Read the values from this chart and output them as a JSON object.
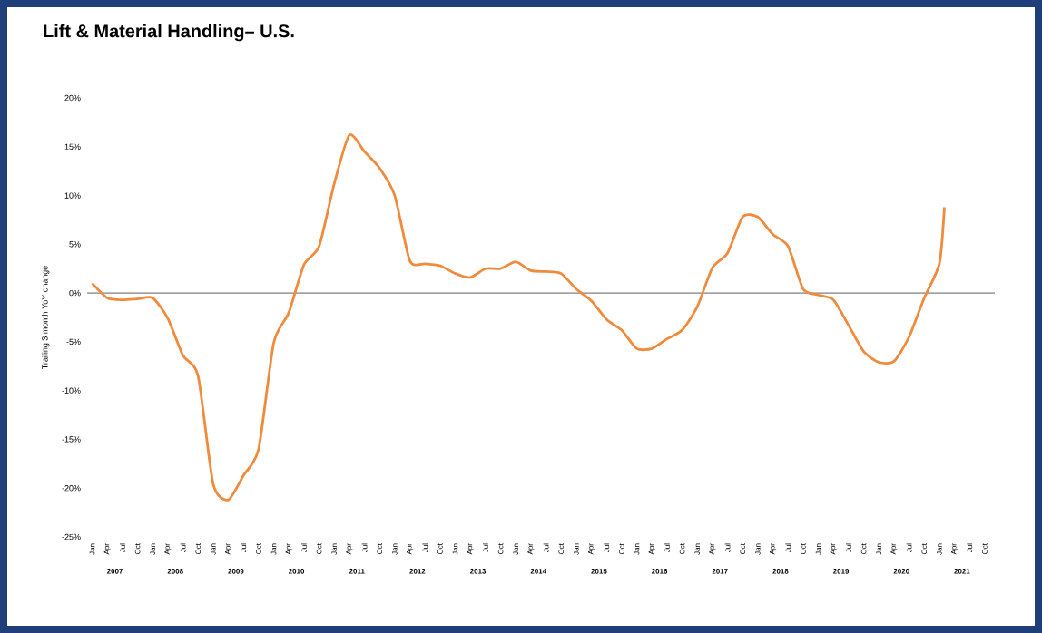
{
  "chart_data": {
    "type": "line",
    "title": "Lift & Material Handling– U.S.",
    "ylabel": "Trailing 3 month YoY change",
    "series": [
      {
        "color": "#f08a3c",
        "x": [
          "2007-01",
          "2007-04",
          "2007-07",
          "2007-10",
          "2008-01",
          "2008-04",
          "2008-07",
          "2008-10",
          "2009-01",
          "2009-04",
          "2009-07",
          "2009-10",
          "2010-01",
          "2010-04",
          "2010-07",
          "2010-10",
          "2011-01",
          "2011-04",
          "2011-07",
          "2011-10",
          "2012-01",
          "2012-04",
          "2012-07",
          "2012-10",
          "2013-01",
          "2013-04",
          "2013-07",
          "2013-10",
          "2014-01",
          "2014-04",
          "2014-07",
          "2014-10",
          "2015-01",
          "2015-04",
          "2015-07",
          "2015-10",
          "2016-01",
          "2016-04",
          "2016-07",
          "2016-10",
          "2017-01",
          "2017-04",
          "2017-07",
          "2017-10",
          "2018-01",
          "2018-04",
          "2018-07",
          "2018-10",
          "2019-01",
          "2019-04",
          "2019-07",
          "2019-10",
          "2020-01",
          "2020-04",
          "2020-07",
          "2020-10",
          "2021-01",
          "2021-02"
        ],
        "values": [
          1.0,
          -0.5,
          -0.7,
          -0.6,
          -0.5,
          -2.6,
          -6.4,
          -8.5,
          -19.6,
          -21.2,
          -18.7,
          -16.0,
          -5.1,
          -2.0,
          2.9,
          4.8,
          11.2,
          16.2,
          14.5,
          12.8,
          10.0,
          3.3,
          3.0,
          2.8,
          2.0,
          1.6,
          2.5,
          2.5,
          3.2,
          2.3,
          2.2,
          2.0,
          0.4,
          -0.8,
          -2.7,
          -3.8,
          -5.7,
          -5.7,
          -4.7,
          -3.8,
          -1.4,
          2.6,
          4.1,
          7.8,
          7.8,
          6.0,
          4.8,
          0.4,
          -0.2,
          -0.7,
          -3.3,
          -6.0,
          -7.1,
          -7.0,
          -4.5,
          -0.5,
          3.0,
          8.8
        ]
      }
    ],
    "xlim": [
      "2006-12",
      "2021-12"
    ],
    "xticks": [
      {
        "value": "2007-01",
        "label": "Jan"
      },
      {
        "value": "2007-04",
        "label": "Apr"
      },
      {
        "value": "2007-07",
        "label": "Jul"
      },
      {
        "value": "2007-10",
        "label": "Oct"
      },
      {
        "value": "2008-01",
        "label": "Jan"
      },
      {
        "value": "2008-04",
        "label": "Apr"
      },
      {
        "value": "2008-07",
        "label": "Jul"
      },
      {
        "value": "2008-10",
        "label": "Oct"
      },
      {
        "value": "2009-01",
        "label": "Jan"
      },
      {
        "value": "2009-04",
        "label": "Apr"
      },
      {
        "value": "2009-07",
        "label": "Jul"
      },
      {
        "value": "2009-10",
        "label": "Oct"
      },
      {
        "value": "2010-01",
        "label": "Jan"
      },
      {
        "value": "2010-04",
        "label": "Apr"
      },
      {
        "value": "2010-07",
        "label": "Jul"
      },
      {
        "value": "2010-10",
        "label": "Oct"
      },
      {
        "value": "2011-01",
        "label": "Jan"
      },
      {
        "value": "2011-04",
        "label": "Apr"
      },
      {
        "value": "2011-07",
        "label": "Jul"
      },
      {
        "value": "2011-10",
        "label": "Oct"
      },
      {
        "value": "2012-01",
        "label": "Jan"
      },
      {
        "value": "2012-04",
        "label": "Apr"
      },
      {
        "value": "2012-07",
        "label": "Jul"
      },
      {
        "value": "2012-10",
        "label": "Oct"
      },
      {
        "value": "2013-01",
        "label": "Jan"
      },
      {
        "value": "2013-04",
        "label": "Apr"
      },
      {
        "value": "2013-07",
        "label": "Jul"
      },
      {
        "value": "2013-10",
        "label": "Oct"
      },
      {
        "value": "2014-01",
        "label": "Jan"
      },
      {
        "value": "2014-04",
        "label": "Apr"
      },
      {
        "value": "2014-07",
        "label": "Jul"
      },
      {
        "value": "2014-10",
        "label": "Oct"
      },
      {
        "value": "2015-01",
        "label": "Jan"
      },
      {
        "value": "2015-04",
        "label": "Apr"
      },
      {
        "value": "2015-07",
        "label": "Jul"
      },
      {
        "value": "2015-10",
        "label": "Oct"
      },
      {
        "value": "2016-01",
        "label": "Jan"
      },
      {
        "value": "2016-04",
        "label": "Apr"
      },
      {
        "value": "2016-07",
        "label": "Jul"
      },
      {
        "value": "2016-10",
        "label": "Oct"
      },
      {
        "value": "2017-01",
        "label": "Jan"
      },
      {
        "value": "2017-04",
        "label": "Apr"
      },
      {
        "value": "2017-07",
        "label": "Jul"
      },
      {
        "value": "2017-10",
        "label": "Oct"
      },
      {
        "value": "2018-01",
        "label": "Jan"
      },
      {
        "value": "2018-04",
        "label": "Apr"
      },
      {
        "value": "2018-07",
        "label": "Jul"
      },
      {
        "value": "2018-10",
        "label": "Oct"
      },
      {
        "value": "2019-01",
        "label": "Jan"
      },
      {
        "value": "2019-04",
        "label": "Apr"
      },
      {
        "value": "2019-07",
        "label": "Jul"
      },
      {
        "value": "2019-10",
        "label": "Oct"
      },
      {
        "value": "2020-01",
        "label": "Jan"
      },
      {
        "value": "2020-04",
        "label": "Apr"
      },
      {
        "value": "2020-07",
        "label": "Jul"
      },
      {
        "value": "2020-10",
        "label": "Oct"
      },
      {
        "value": "2021-01",
        "label": "Jan"
      },
      {
        "value": "2021-04",
        "label": "Apr"
      },
      {
        "value": "2021-07",
        "label": "Jul"
      },
      {
        "value": "2021-10",
        "label": "Oct"
      }
    ],
    "ylim": [
      -25,
      20
    ],
    "yticks": [
      {
        "value": -25,
        "label": "-25%"
      },
      {
        "value": -20,
        "label": "-20%"
      },
      {
        "value": -15,
        "label": "-15%"
      },
      {
        "value": -10,
        "label": "-10%"
      },
      {
        "value": -5,
        "label": "-5%"
      },
      {
        "value": 0,
        "label": "0%"
      },
      {
        "value": 5,
        "label": "5%"
      },
      {
        "value": 10,
        "label": "10%"
      },
      {
        "value": 15,
        "label": "15%"
      },
      {
        "value": 20,
        "label": "20%"
      }
    ],
    "ref_lines": [
      {
        "axis": "y",
        "value": 0,
        "color": "#808080"
      }
    ],
    "annotations": [
      "2007",
      "2008",
      "2009",
      "2010",
      "2011",
      "2012",
      "2013",
      "2014",
      "2015",
      "2016",
      "2017",
      "2018",
      "2019",
      "2020",
      "2021"
    ]
  }
}
